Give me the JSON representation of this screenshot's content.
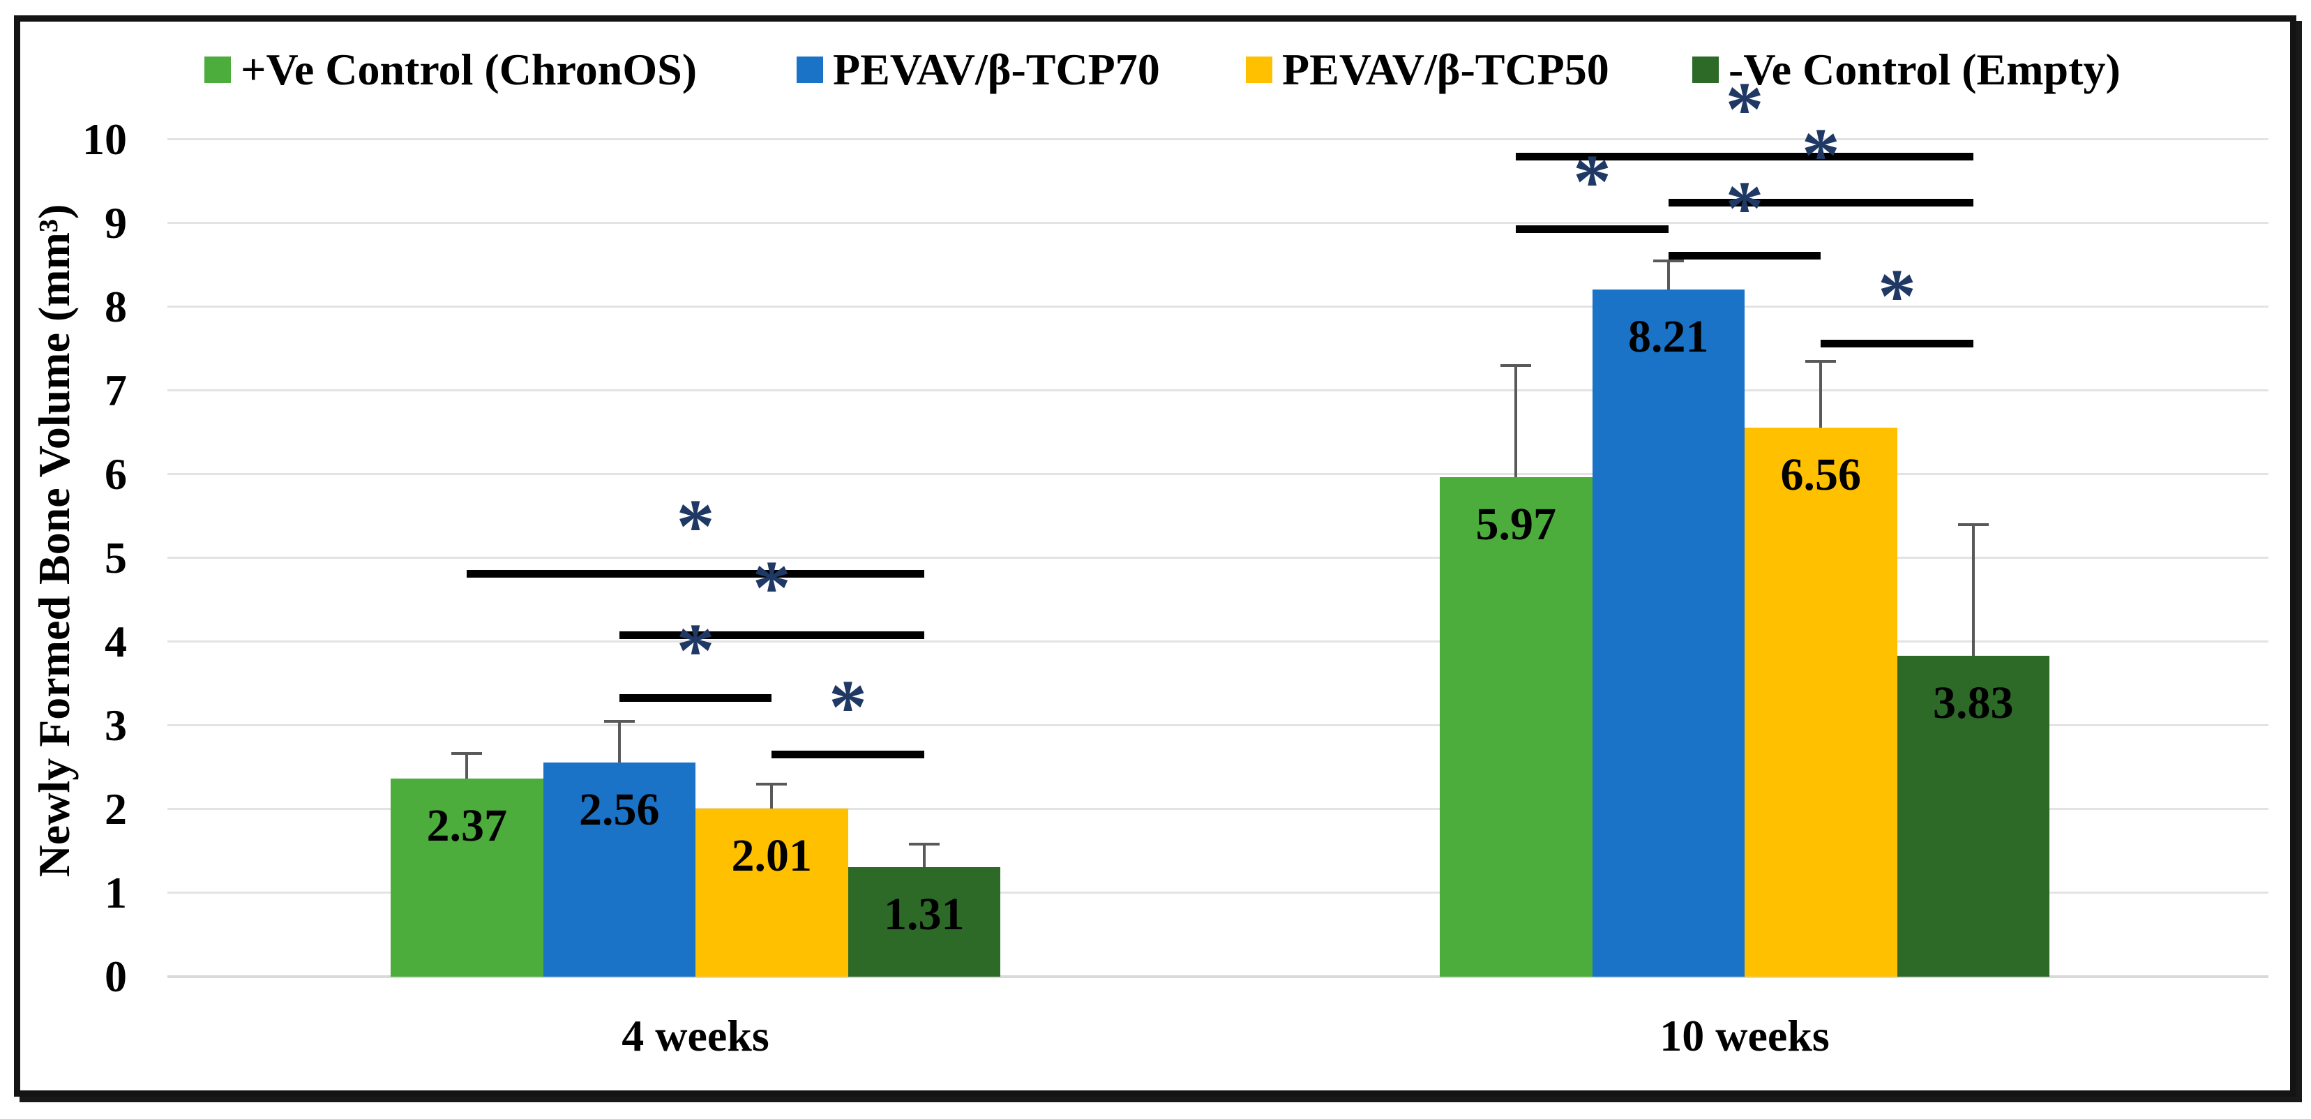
{
  "chart_data": {
    "type": "bar",
    "title": "",
    "ylabel": "Newly Formed Bone Volume (mm³)",
    "xlabel": "",
    "categories": [
      "4 weeks",
      "10 weeks"
    ],
    "y_ticks": [
      "0",
      "1",
      "2",
      "3",
      "4",
      "5",
      "6",
      "7",
      "8",
      "9",
      "10"
    ],
    "ylim": [
      0,
      10
    ],
    "grid": true,
    "legend_position": "top",
    "series": [
      {
        "name": "+Ve Control (ChronOS)",
        "color": "#4CAC3C",
        "values": [
          2.37,
          5.97
        ],
        "errors_plus": [
          0.3,
          1.33
        ]
      },
      {
        "name": "PEVAV/β-TCP70",
        "color": "#1B73C8",
        "values": [
          2.56,
          8.21
        ],
        "errors_plus": [
          0.49,
          0.34
        ]
      },
      {
        "name": "PEVAV/β-TCP50",
        "color": "#FFC000",
        "values": [
          2.01,
          6.56
        ],
        "errors_plus": [
          0.29,
          0.79
        ]
      },
      {
        "name": "-Ve Control (Empty)",
        "color": "#2D6A28",
        "values": [
          1.31,
          3.83
        ],
        "errors_plus": [
          0.27,
          1.57
        ]
      }
    ],
    "value_labels": [
      [
        "2.37",
        "2.56",
        "2.01",
        "1.31"
      ],
      [
        "5.97",
        "8.21",
        "6.56",
        "3.83"
      ]
    ],
    "significance": [
      {
        "group": 0,
        "from": 0,
        "to": 3,
        "at": 4.82,
        "label": "*"
      },
      {
        "group": 0,
        "from": 1,
        "to": 3,
        "at": 4.08,
        "label": "*"
      },
      {
        "group": 0,
        "from": 1,
        "to": 2,
        "at": 3.33,
        "label": "*"
      },
      {
        "group": 0,
        "from": 2,
        "to": 3,
        "at": 2.66,
        "label": "*"
      },
      {
        "group": 1,
        "from": 0,
        "to": 3,
        "at": 9.8,
        "label": "*"
      },
      {
        "group": 1,
        "from": 1,
        "to": 3,
        "at": 9.25,
        "label": "*"
      },
      {
        "group": 1,
        "from": 0,
        "to": 1,
        "at": 8.93,
        "label": "*"
      },
      {
        "group": 1,
        "from": 1,
        "to": 2,
        "at": 8.62,
        "label": "*"
      },
      {
        "group": 1,
        "from": 2,
        "to": 3,
        "at": 7.57,
        "label": "*"
      }
    ],
    "colors": {
      "significance_star": "#1F3864",
      "bracket": "#000000",
      "gridline": "#E3E3E3",
      "axis_line": "#D9D9D9",
      "error_bar": "#595959",
      "border": "#141414",
      "text": "#000000",
      "background": "#FFFFFF"
    }
  }
}
